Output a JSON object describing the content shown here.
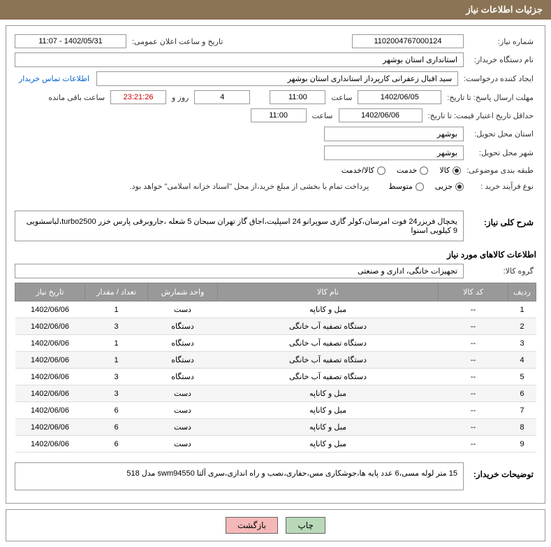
{
  "header": {
    "title": "جزئیات اطلاعات نیاز"
  },
  "form": {
    "need_number_label": "شماره نیاز:",
    "need_number": "1102004767000124",
    "announce_label": "تاریخ و ساعت اعلان عمومی:",
    "announce_value": "1402/05/31 - 11:07",
    "buyer_org_label": "نام دستگاه خریدار:",
    "buyer_org": "استانداری استان بوشهر",
    "requester_label": "ایجاد کننده درخواست:",
    "requester": "سید اقبال زعفرانی کارپرداز استانداری استان بوشهر",
    "contact_link": "اطلاعات تماس خریدار",
    "deadline_label": "مهلت ارسال پاسخ: تا تاریخ:",
    "deadline_date": "1402/06/05",
    "time_label": "ساعت",
    "deadline_time": "11:00",
    "days_count": "4",
    "days_label": "روز و",
    "countdown": "23:21:26",
    "remaining_label": "ساعت باقی مانده",
    "validity_label": "حداقل تاریخ اعتبار قیمت: تا تاریخ:",
    "validity_date": "1402/06/06",
    "validity_time": "11:00",
    "province_label": "استان محل تحویل:",
    "province": "بوشهر",
    "city_label": "شهر محل تحویل:",
    "city": "بوشهر",
    "category_label": "طبقه بندی موضوعی:",
    "cat_goods": "کالا",
    "cat_service": "خدمت",
    "cat_goods_service": "کالا/خدمت",
    "process_label": "نوع فرآیند خرید :",
    "proc_partial": "جزیی",
    "proc_medium": "متوسط",
    "payment_note": "پرداخت تمام یا بخشی از مبلغ خرید،از محل \"اسناد خزانه اسلامی\" خواهد بود.",
    "desc_label": "شرح کلی نیاز:",
    "desc_text": "یخچال فریزر24 فوت امرسان،کولر گازی سوپرانو 24 اسپلیت،اجاق گاز تهران سبحان 5 شعله ،جاروبرقی پارس خزر turbo2500،لباسشویی 9 کیلویی اسنوا",
    "items_title": "اطلاعات کالاهای مورد نیاز",
    "group_label": "گروه کالا:",
    "group_value": "تجهیزات خانگی، اداری و صنعتی",
    "buyer_notes_label": "توضیحات خریدار:",
    "buyer_notes": "15 متر لوله مسی،6 عدد پایه ها،جوشکاری مس،حفاری،نصب و راه اندازی،سری آلتا swm94550 مدل 518"
  },
  "table": {
    "headers": {
      "row": "ردیف",
      "code": "کد کالا",
      "name": "نام کالا",
      "unit": "واحد شمارش",
      "qty": "تعداد / مقدار",
      "date": "تاریخ نیاز"
    },
    "rows": [
      {
        "n": "1",
        "code": "--",
        "name": "مبل و کاناپه",
        "unit": "دست",
        "qty": "1",
        "date": "1402/06/06"
      },
      {
        "n": "2",
        "code": "--",
        "name": "دستگاه تصفیه آب خانگی",
        "unit": "دستگاه",
        "qty": "3",
        "date": "1402/06/06"
      },
      {
        "n": "3",
        "code": "--",
        "name": "دستگاه تصفیه آب خانگی",
        "unit": "دستگاه",
        "qty": "1",
        "date": "1402/06/06"
      },
      {
        "n": "4",
        "code": "--",
        "name": "دستگاه تصفیه آب خانگی",
        "unit": "دستگاه",
        "qty": "1",
        "date": "1402/06/06"
      },
      {
        "n": "5",
        "code": "--",
        "name": "دستگاه تصفیه آب خانگی",
        "unit": "دستگاه",
        "qty": "3",
        "date": "1402/06/06"
      },
      {
        "n": "6",
        "code": "--",
        "name": "مبل و کاناپه",
        "unit": "دست",
        "qty": "3",
        "date": "1402/06/06"
      },
      {
        "n": "7",
        "code": "--",
        "name": "مبل و کاناپه",
        "unit": "دست",
        "qty": "6",
        "date": "1402/06/06"
      },
      {
        "n": "8",
        "code": "--",
        "name": "مبل و کاناپه",
        "unit": "دست",
        "qty": "6",
        "date": "1402/06/06"
      },
      {
        "n": "9",
        "code": "--",
        "name": "مبل و کاناپه",
        "unit": "دست",
        "qty": "6",
        "date": "1402/06/06"
      }
    ]
  },
  "buttons": {
    "print": "چاپ",
    "back": "بازگشت"
  },
  "colors": {
    "header_bg": "#8b7355",
    "th_bg": "#999999",
    "btn_back": "#f5b8b8",
    "btn_print": "#b8d8b8"
  }
}
